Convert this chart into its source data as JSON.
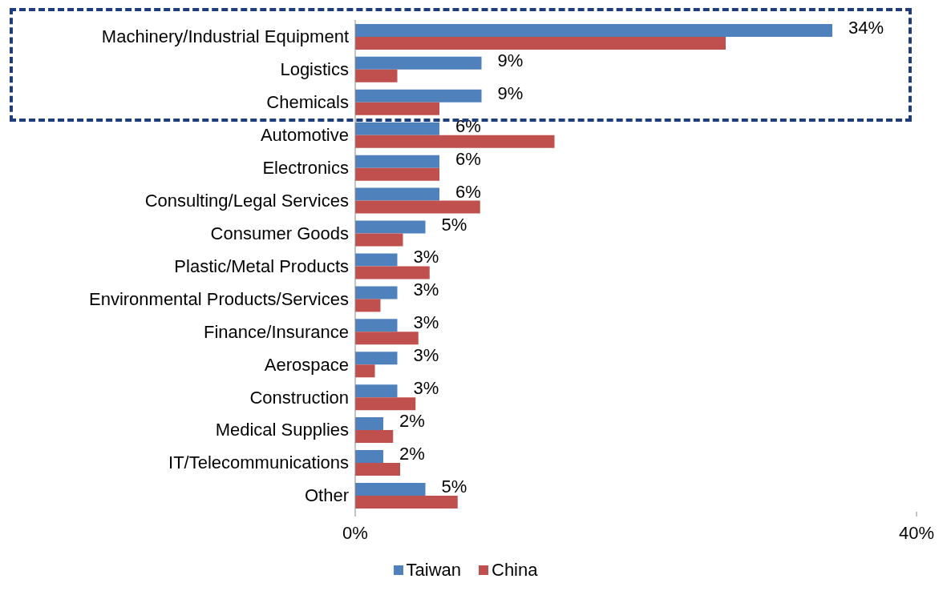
{
  "chart_data": {
    "type": "bar",
    "orientation": "horizontal",
    "categories": [
      "Machinery/Industrial Equipment",
      "Logistics",
      "Chemicals",
      "Automotive",
      "Electronics",
      "Consulting/Legal Services",
      "Consumer Goods",
      "Plastic/Metal Products",
      "Environmental Products/Services",
      "Finance/Insurance",
      "Aerospace",
      "Construction",
      "Medical Supplies",
      "IT/Telecommunications",
      "Other"
    ],
    "series": [
      {
        "name": "Taiwan",
        "color": "#4f81bd",
        "values": [
          34,
          9,
          9,
          6,
          6,
          6,
          5,
          3,
          3,
          3,
          3,
          3,
          2,
          2,
          5
        ],
        "value_labels": [
          "34%",
          "9%",
          "9%",
          "6%",
          "6%",
          "6%",
          "5%",
          "3%",
          "3%",
          "3%",
          "3%",
          "3%",
          "2%",
          "2%",
          "5%"
        ]
      },
      {
        "name": "China",
        "color": "#c0504d",
        "values": [
          26.4,
          3.0,
          6.0,
          14.2,
          6.0,
          8.9,
          3.4,
          5.3,
          1.8,
          4.5,
          1.4,
          4.3,
          2.7,
          3.2,
          7.3
        ]
      }
    ],
    "xlim": [
      0,
      40
    ],
    "xticks": [
      {
        "value": 0,
        "label": "0%"
      },
      {
        "value": 40,
        "label": "40%"
      }
    ],
    "legend": "bottom"
  }
}
